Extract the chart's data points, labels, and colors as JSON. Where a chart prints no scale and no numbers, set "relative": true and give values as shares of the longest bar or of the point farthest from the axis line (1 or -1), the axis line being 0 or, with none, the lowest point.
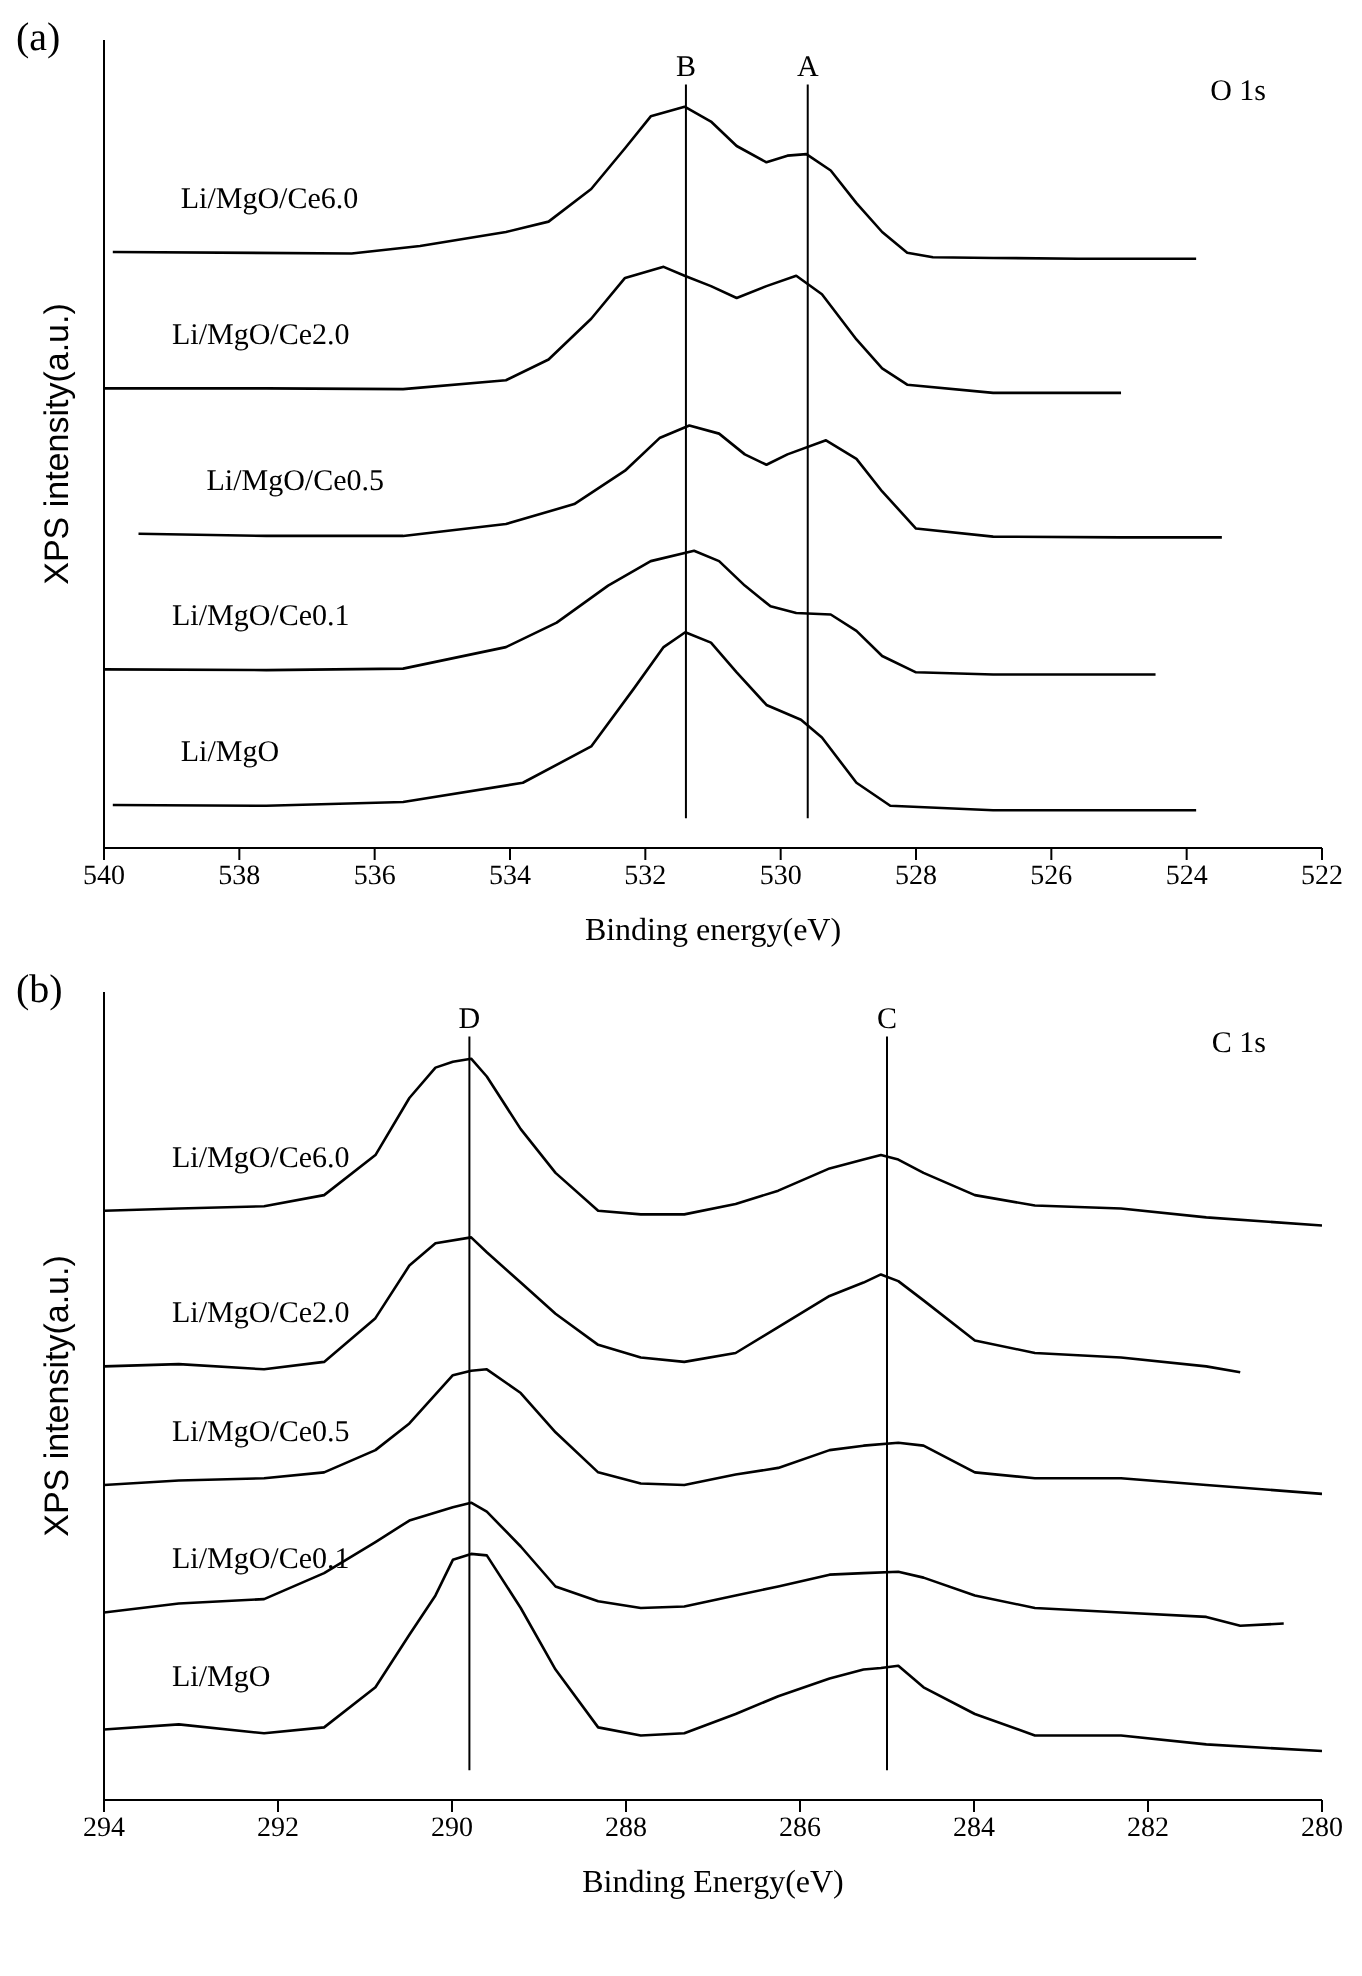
{
  "chart_data": [
    {
      "type": "line",
      "title": "(a)",
      "xlabel": "Binding energy(eV)",
      "ylabel": "XPS intensity(a.u.)",
      "relative": true,
      "xlim": [
        540,
        522
      ],
      "xticks": [
        540,
        538,
        536,
        534,
        532,
        530,
        528,
        526,
        524,
        522
      ],
      "marker": "none",
      "line_style": "solid",
      "annotations": [
        "O 1s"
      ],
      "ref_lines": [
        {
          "axis": "x",
          "value": 531.4,
          "label": "B",
          "color": "#000000"
        },
        {
          "axis": "x",
          "value": 529.6,
          "label": "A",
          "color": "#000000"
        }
      ],
      "series": [
        {
          "name": "Li/MgO/Ce6.0",
          "color": "#000000",
          "x": [
            539.87,
            536.34,
            535.33,
            534.06,
            533.43,
            532.8,
            532.3,
            531.92,
            531.42,
            531.03,
            530.65,
            530.21,
            529.9,
            529.62,
            529.26,
            528.88,
            528.5,
            528.13,
            527.75,
            526.86,
            525.6,
            523.86
          ],
          "values": [
            0.804,
            0.802,
            0.812,
            0.831,
            0.845,
            0.889,
            0.944,
            0.987,
            1.0,
            0.98,
            0.947,
            0.925,
            0.934,
            0.936,
            0.914,
            0.87,
            0.831,
            0.803,
            0.797,
            0.796,
            0.795,
            0.795
          ]
        },
        {
          "name": "Li/MgO/Ce2.0",
          "color": "#000000",
          "x": [
            540.0,
            537.6,
            535.58,
            534.06,
            533.43,
            532.8,
            532.3,
            531.73,
            531.42,
            531.03,
            530.65,
            530.21,
            529.77,
            529.39,
            528.88,
            528.5,
            528.13,
            526.86,
            524.97
          ],
          "values": [
            0.62,
            0.62,
            0.619,
            0.631,
            0.659,
            0.714,
            0.769,
            0.784,
            0.772,
            0.758,
            0.742,
            0.758,
            0.772,
            0.747,
            0.686,
            0.647,
            0.625,
            0.614,
            0.614
          ]
        },
        {
          "name": "Li/MgO/Ce0.5",
          "color": "#000000",
          "x": [
            539.49,
            537.6,
            535.58,
            534.06,
            533.05,
            532.3,
            531.79,
            531.35,
            530.91,
            530.53,
            530.21,
            529.9,
            529.33,
            528.88,
            528.5,
            528.0,
            526.86,
            524.97,
            523.48
          ],
          "values": [
            0.424,
            0.421,
            0.421,
            0.437,
            0.464,
            0.509,
            0.553,
            0.57,
            0.559,
            0.531,
            0.517,
            0.531,
            0.55,
            0.525,
            0.481,
            0.431,
            0.42,
            0.419,
            0.419
          ]
        },
        {
          "name": "Li/MgO/Ce0.1",
          "color": "#000000",
          "x": [
            540.0,
            537.6,
            535.58,
            534.06,
            533.31,
            532.55,
            531.92,
            531.28,
            530.91,
            530.53,
            530.15,
            529.77,
            529.26,
            528.88,
            528.5,
            528.0,
            526.86,
            524.46
          ],
          "values": [
            0.241,
            0.24,
            0.242,
            0.271,
            0.304,
            0.354,
            0.387,
            0.401,
            0.387,
            0.354,
            0.326,
            0.317,
            0.315,
            0.293,
            0.259,
            0.237,
            0.234,
            0.234
          ]
        },
        {
          "name": "Li/MgO",
          "color": "#000000",
          "x": [
            539.87,
            537.6,
            535.58,
            533.81,
            532.8,
            532.17,
            531.73,
            531.41,
            531.03,
            530.65,
            530.21,
            529.7,
            529.39,
            528.88,
            528.38,
            526.86,
            523.86
          ],
          "values": [
            0.058,
            0.057,
            0.062,
            0.088,
            0.137,
            0.215,
            0.271,
            0.291,
            0.277,
            0.237,
            0.193,
            0.173,
            0.149,
            0.088,
            0.057,
            0.051,
            0.051
          ]
        }
      ]
    },
    {
      "type": "line",
      "title": "(b)",
      "xlabel": "Binding Energy(eV)",
      "ylabel": "XPS intensity(a.u.)",
      "relative": true,
      "xlim": [
        294,
        280
      ],
      "xticks": [
        294,
        292,
        290,
        288,
        286,
        284,
        282,
        280
      ],
      "marker": "none",
      "line_style": "solid",
      "annotations": [
        "C 1s"
      ],
      "ref_lines": [
        {
          "axis": "x",
          "value": 289.8,
          "label": "D",
          "color": "#000000"
        },
        {
          "axis": "x",
          "value": 285.0,
          "label": "C",
          "color": "#000000"
        }
      ],
      "series": [
        {
          "name": "Li/MgO/Ce6.0",
          "color": "#000000",
          "x": [
            294,
            293.14,
            292.16,
            291.47,
            290.88,
            290.49,
            290.19,
            289.99,
            289.78,
            289.6,
            289.21,
            288.81,
            288.32,
            287.83,
            287.33,
            286.74,
            286.25,
            285.66,
            285.27,
            285.07,
            284.87,
            284.58,
            283.99,
            283.3,
            282.31,
            281.33,
            280.0
          ],
          "values": [
            0.795,
            0.798,
            0.801,
            0.816,
            0.87,
            0.947,
            0.988,
            0.996,
            1.0,
            0.976,
            0.905,
            0.846,
            0.795,
            0.79,
            0.79,
            0.804,
            0.822,
            0.852,
            0.864,
            0.87,
            0.864,
            0.846,
            0.816,
            0.802,
            0.798,
            0.786,
            0.775
          ]
        },
        {
          "name": "Li/MgO/Ce2.0",
          "color": "#000000",
          "x": [
            294,
            293.14,
            292.16,
            291.47,
            290.88,
            290.49,
            290.19,
            289.78,
            289.6,
            289.21,
            288.81,
            288.32,
            287.83,
            287.33,
            286.74,
            286.25,
            285.66,
            285.27,
            285.07,
            284.87,
            284.58,
            283.99,
            283.3,
            282.31,
            281.33,
            280.94
          ],
          "values": [
            0.585,
            0.588,
            0.581,
            0.591,
            0.65,
            0.721,
            0.751,
            0.759,
            0.739,
            0.698,
            0.656,
            0.614,
            0.597,
            0.591,
            0.603,
            0.638,
            0.68,
            0.698,
            0.709,
            0.7,
            0.674,
            0.62,
            0.603,
            0.597,
            0.585,
            0.577
          ]
        },
        {
          "name": "Li/MgO/Ce0.5",
          "color": "#000000",
          "x": [
            294,
            293.14,
            292.16,
            291.47,
            290.88,
            290.49,
            289.99,
            289.78,
            289.6,
            289.21,
            288.81,
            288.32,
            287.83,
            287.33,
            286.74,
            286.25,
            285.66,
            285.27,
            284.87,
            284.58,
            283.99,
            283.3,
            282.31,
            281.33,
            280.0
          ],
          "values": [
            0.425,
            0.431,
            0.434,
            0.442,
            0.472,
            0.508,
            0.573,
            0.579,
            0.581,
            0.549,
            0.496,
            0.442,
            0.427,
            0.425,
            0.439,
            0.448,
            0.472,
            0.478,
            0.482,
            0.478,
            0.442,
            0.434,
            0.434,
            0.425,
            0.413
          ]
        },
        {
          "name": "Li/MgO/Ce0.1",
          "color": "#000000",
          "x": [
            294,
            293.14,
            292.16,
            291.47,
            290.88,
            290.49,
            289.99,
            289.78,
            289.6,
            289.21,
            288.81,
            288.32,
            287.83,
            287.33,
            286.74,
            286.25,
            285.66,
            285.27,
            284.87,
            284.58,
            283.99,
            283.3,
            282.31,
            281.33,
            280.94,
            280.44
          ],
          "values": [
            0.253,
            0.265,
            0.271,
            0.306,
            0.348,
            0.377,
            0.395,
            0.401,
            0.389,
            0.342,
            0.288,
            0.268,
            0.259,
            0.261,
            0.276,
            0.288,
            0.304,
            0.306,
            0.308,
            0.3,
            0.276,
            0.259,
            0.253,
            0.247,
            0.235,
            0.238
          ]
        },
        {
          "name": "Li/MgO",
          "color": "#000000",
          "x": [
            294,
            293.14,
            292.16,
            291.47,
            290.88,
            290.49,
            290.19,
            289.99,
            289.78,
            289.6,
            289.21,
            288.81,
            288.32,
            287.83,
            287.33,
            286.74,
            286.25,
            285.66,
            285.27,
            285.07,
            284.87,
            284.58,
            283.99,
            283.3,
            282.31,
            281.33,
            280.0
          ],
          "values": [
            0.095,
            0.102,
            0.09,
            0.098,
            0.152,
            0.223,
            0.276,
            0.324,
            0.332,
            0.33,
            0.259,
            0.176,
            0.098,
            0.087,
            0.09,
            0.116,
            0.14,
            0.164,
            0.176,
            0.178,
            0.181,
            0.152,
            0.116,
            0.087,
            0.087,
            0.075,
            0.066
          ]
        }
      ]
    }
  ]
}
